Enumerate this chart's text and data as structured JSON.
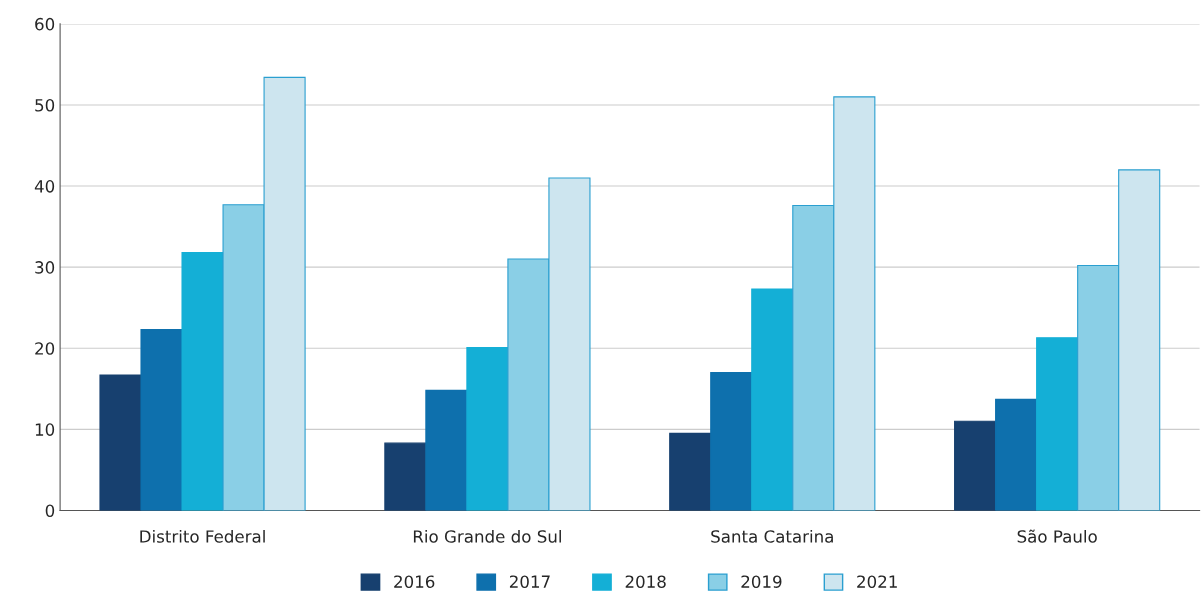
{
  "chart_data": {
    "type": "bar",
    "categories": [
      "Distrito Federal",
      "Rio Grande do Sul",
      "Santa Catarina",
      "São Paulo"
    ],
    "series": [
      {
        "name": "2016",
        "color": "#17406f",
        "values": [
          16.7,
          8.3,
          9.5,
          11.0
        ]
      },
      {
        "name": "2017",
        "color": "#0e70ad",
        "values": [
          22.3,
          14.8,
          17.0,
          13.7
        ]
      },
      {
        "name": "2018",
        "color": "#14afd6",
        "values": [
          31.8,
          20.1,
          27.3,
          21.3
        ]
      },
      {
        "name": "2019",
        "color": "#8acfe6",
        "values": [
          37.7,
          31.0,
          37.6,
          30.2
        ]
      },
      {
        "name": "2021",
        "color": "#cde5ef",
        "values": [
          53.4,
          41.0,
          51.0,
          42.0
        ]
      }
    ],
    "ylim": [
      0,
      60
    ],
    "yticks": [
      0,
      10,
      20,
      30,
      40,
      50,
      60
    ],
    "grid": "y",
    "legend": "bottom"
  }
}
